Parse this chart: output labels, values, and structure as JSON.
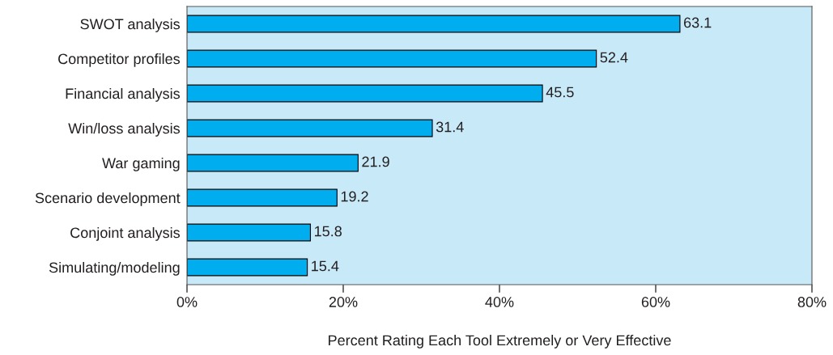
{
  "chart_data": {
    "type": "bar",
    "orientation": "horizontal",
    "categories": [
      "SWOT analysis",
      "Competitor profiles",
      "Financial analysis",
      "Win/loss analysis",
      "War gaming",
      "Scenario development",
      "Conjoint analysis",
      "Simulating/modeling"
    ],
    "values": [
      63.1,
      52.4,
      45.5,
      31.4,
      21.9,
      19.2,
      15.8,
      15.4
    ],
    "color": "#00aeef",
    "xlim": [
      0,
      80
    ],
    "xticks": [
      {
        "value": 0,
        "label": "0%"
      },
      {
        "value": 20,
        "label": "20%"
      },
      {
        "value": 40,
        "label": "40%"
      },
      {
        "value": 60,
        "label": "60%"
      },
      {
        "value": 80,
        "label": "80%"
      }
    ],
    "xlabel": "Percent Rating Each Tool Extremely or Very Effective",
    "data_labels": true,
    "grid": false,
    "legend": false
  }
}
